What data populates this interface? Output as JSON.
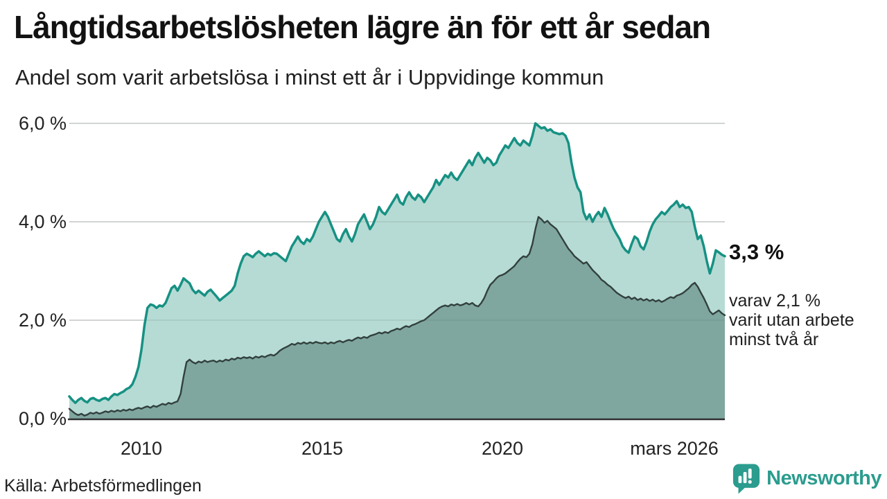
{
  "header": {
    "title": "Långtidsarbetslösheten lägre än för ett år sedan",
    "subtitle": "Andel som varit arbetslösa i minst ett år i Uppvidinge kommun"
  },
  "annotations": {
    "end_value": "3,3 %",
    "secondary_note_lines": [
      "varav 2,1 %",
      "varit utan arbete",
      "minst två år"
    ]
  },
  "footer": {
    "source": "Källa: Arbetsförmedlingen",
    "brand": "Newsworthy"
  },
  "colors": {
    "series1_line": "#169183",
    "series1_fill": "#b6dbd4",
    "series2_line": "#32403d",
    "series2_fill": "#7fa7a0",
    "gridline": "#dcdcdc",
    "baseline": "#303030",
    "brand_teal": "#2b9c8e"
  },
  "chart_data": {
    "type": "area",
    "title": "Långtidsarbetslösheten lägre än för ett år sedan",
    "subtitle": "Andel som varit arbetslösa i minst ett år i Uppvidinge kommun",
    "unit": "%",
    "x_start": 2008.0,
    "x_end": 2026.1667,
    "points_per_year": 12,
    "ylim": [
      0,
      6.4
    ],
    "grid": "horizontal",
    "legend_position": "none",
    "yticks": [
      {
        "value": 0,
        "label": "0,0 %"
      },
      {
        "value": 2,
        "label": "2,0 %"
      },
      {
        "value": 4,
        "label": "4,0 %"
      },
      {
        "value": 6,
        "label": "6,0 %"
      }
    ],
    "xticks": [
      {
        "t": 2010,
        "label": "2010"
      },
      {
        "t": 2015,
        "label": "2015"
      },
      {
        "t": 2020,
        "label": "2020"
      },
      {
        "t": 2026.17,
        "label": "mars 2026"
      }
    ],
    "series": [
      {
        "name": "Arbetslösa minst ett år",
        "end_label": "3,3 %",
        "values": [
          0.45,
          0.38,
          0.32,
          0.38,
          0.42,
          0.36,
          0.33,
          0.4,
          0.42,
          0.38,
          0.36,
          0.4,
          0.42,
          0.38,
          0.45,
          0.5,
          0.48,
          0.52,
          0.55,
          0.6,
          0.63,
          0.7,
          0.85,
          1.05,
          1.4,
          1.9,
          2.25,
          2.32,
          2.3,
          2.25,
          2.3,
          2.28,
          2.35,
          2.5,
          2.65,
          2.7,
          2.6,
          2.72,
          2.85,
          2.8,
          2.75,
          2.62,
          2.55,
          2.6,
          2.55,
          2.5,
          2.58,
          2.62,
          2.55,
          2.48,
          2.4,
          2.45,
          2.5,
          2.55,
          2.6,
          2.7,
          2.95,
          3.15,
          3.3,
          3.35,
          3.32,
          3.28,
          3.35,
          3.4,
          3.35,
          3.3,
          3.35,
          3.32,
          3.36,
          3.35,
          3.3,
          3.25,
          3.2,
          3.35,
          3.5,
          3.6,
          3.7,
          3.6,
          3.55,
          3.65,
          3.6,
          3.7,
          3.85,
          4.0,
          4.1,
          4.2,
          4.1,
          3.95,
          3.8,
          3.65,
          3.6,
          3.75,
          3.85,
          3.7,
          3.6,
          3.75,
          3.95,
          4.05,
          4.15,
          4.0,
          3.85,
          3.95,
          4.1,
          4.3,
          4.2,
          4.15,
          4.25,
          4.35,
          4.45,
          4.55,
          4.4,
          4.35,
          4.5,
          4.6,
          4.5,
          4.45,
          4.55,
          4.5,
          4.4,
          4.5,
          4.6,
          4.7,
          4.85,
          4.75,
          4.85,
          4.95,
          4.9,
          5.0,
          4.9,
          4.85,
          4.95,
          5.05,
          5.15,
          5.25,
          5.15,
          5.3,
          5.4,
          5.3,
          5.2,
          5.3,
          5.25,
          5.15,
          5.2,
          5.35,
          5.45,
          5.55,
          5.5,
          5.6,
          5.7,
          5.6,
          5.55,
          5.65,
          5.6,
          5.55,
          5.75,
          6.0,
          5.95,
          5.9,
          5.92,
          5.85,
          5.88,
          5.82,
          5.8,
          5.78,
          5.8,
          5.75,
          5.6,
          5.2,
          4.9,
          4.7,
          4.6,
          4.2,
          4.05,
          4.15,
          4.0,
          4.12,
          4.2,
          4.1,
          4.28,
          4.15,
          4.0,
          3.86,
          3.75,
          3.65,
          3.5,
          3.42,
          3.37,
          3.55,
          3.7,
          3.65,
          3.5,
          3.44,
          3.6,
          3.8,
          3.95,
          4.05,
          4.12,
          4.2,
          4.15,
          4.22,
          4.3,
          4.35,
          4.42,
          4.3,
          4.35,
          4.28,
          4.3,
          4.2,
          3.9,
          3.65,
          3.72,
          3.5,
          3.2,
          2.95,
          3.15,
          3.42,
          3.38,
          3.33,
          3.3
        ]
      },
      {
        "name": "Arbetslösa minst två år",
        "end_label": "2,1 %",
        "values": [
          0.2,
          0.15,
          0.1,
          0.07,
          0.1,
          0.06,
          0.08,
          0.12,
          0.1,
          0.13,
          0.1,
          0.12,
          0.15,
          0.13,
          0.16,
          0.14,
          0.17,
          0.15,
          0.18,
          0.16,
          0.19,
          0.17,
          0.2,
          0.22,
          0.2,
          0.23,
          0.25,
          0.22,
          0.26,
          0.24,
          0.27,
          0.3,
          0.28,
          0.32,
          0.3,
          0.33,
          0.35,
          0.5,
          0.85,
          1.15,
          1.2,
          1.15,
          1.12,
          1.16,
          1.14,
          1.18,
          1.15,
          1.17,
          1.18,
          1.15,
          1.18,
          1.16,
          1.2,
          1.18,
          1.22,
          1.2,
          1.24,
          1.22,
          1.25,
          1.23,
          1.25,
          1.22,
          1.26,
          1.24,
          1.27,
          1.25,
          1.28,
          1.3,
          1.28,
          1.32,
          1.38,
          1.42,
          1.45,
          1.48,
          1.52,
          1.5,
          1.54,
          1.52,
          1.55,
          1.52,
          1.55,
          1.53,
          1.56,
          1.54,
          1.53,
          1.55,
          1.52,
          1.55,
          1.53,
          1.56,
          1.58,
          1.55,
          1.58,
          1.6,
          1.58,
          1.62,
          1.65,
          1.63,
          1.66,
          1.64,
          1.68,
          1.7,
          1.72,
          1.75,
          1.73,
          1.76,
          1.74,
          1.78,
          1.8,
          1.83,
          1.81,
          1.85,
          1.88,
          1.86,
          1.9,
          1.92,
          1.95,
          1.98,
          2.0,
          2.05,
          2.1,
          2.15,
          2.2,
          2.25,
          2.28,
          2.3,
          2.28,
          2.32,
          2.3,
          2.33,
          2.3,
          2.32,
          2.35,
          2.32,
          2.35,
          2.3,
          2.28,
          2.35,
          2.45,
          2.6,
          2.72,
          2.78,
          2.85,
          2.9,
          2.92,
          2.95,
          3.0,
          3.05,
          3.1,
          3.18,
          3.25,
          3.3,
          3.28,
          3.35,
          3.55,
          3.85,
          4.1,
          4.05,
          3.98,
          4.02,
          3.95,
          3.9,
          3.85,
          3.75,
          3.65,
          3.55,
          3.45,
          3.38,
          3.3,
          3.25,
          3.2,
          3.15,
          3.18,
          3.1,
          3.02,
          2.96,
          2.9,
          2.82,
          2.78,
          2.72,
          2.68,
          2.62,
          2.56,
          2.52,
          2.48,
          2.45,
          2.48,
          2.43,
          2.46,
          2.41,
          2.44,
          2.4,
          2.43,
          2.39,
          2.42,
          2.38,
          2.41,
          2.37,
          2.4,
          2.44,
          2.47,
          2.45,
          2.5,
          2.52,
          2.55,
          2.6,
          2.65,
          2.72,
          2.76,
          2.68,
          2.56,
          2.45,
          2.32,
          2.18,
          2.12,
          2.16,
          2.2,
          2.14,
          2.1
        ]
      }
    ]
  }
}
